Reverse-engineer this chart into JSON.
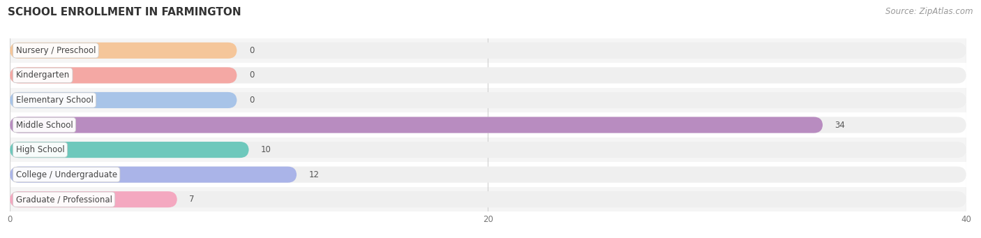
{
  "title": "SCHOOL ENROLLMENT IN FARMINGTON",
  "source": "Source: ZipAtlas.com",
  "categories": [
    "Nursery / Preschool",
    "Kindergarten",
    "Elementary School",
    "Middle School",
    "High School",
    "College / Undergraduate",
    "Graduate / Professional"
  ],
  "values": [
    0,
    0,
    0,
    34,
    10,
    12,
    7
  ],
  "bar_colors": [
    "#f5c69a",
    "#f4a8a4",
    "#a8c4e8",
    "#b88cc0",
    "#6ec8bc",
    "#aab4e8",
    "#f4a8c0"
  ],
  "bar_bg_color": "#efefef",
  "xlim": [
    0,
    40
  ],
  "xticks": [
    0,
    20,
    40
  ],
  "background_color": "#ffffff",
  "row_alt_color": "#f5f5f5",
  "title_fontsize": 11,
  "label_fontsize": 8.5,
  "value_fontsize": 8.5,
  "source_fontsize": 8.5,
  "bar_height": 0.65,
  "zero_bar_width": 9.5
}
